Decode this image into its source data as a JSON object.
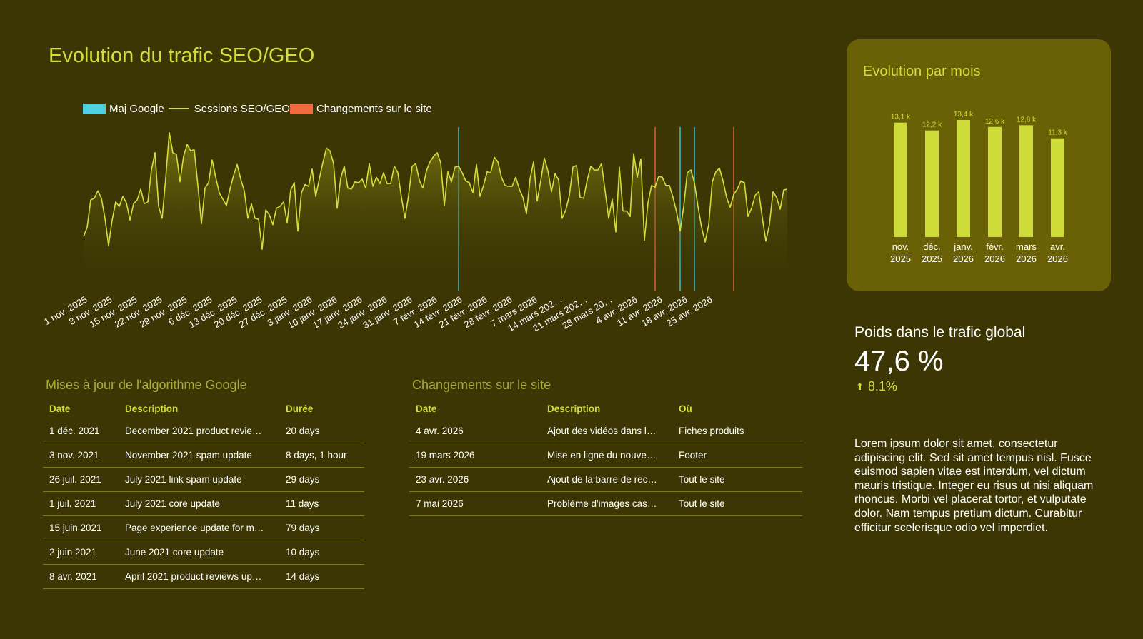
{
  "page": {
    "title": "Evolution du trafic SEO/GEO",
    "legend": [
      {
        "label": "Maj Google",
        "color": "#4fd0e0",
        "kind": "box"
      },
      {
        "label": "Sessions SEO/GEO",
        "color": "#d3de3a",
        "kind": "line"
      },
      {
        "label": "Changements sur le site",
        "color": "#f26a3d",
        "kind": "box"
      }
    ]
  },
  "chart_data": [
    {
      "type": "line",
      "title": "",
      "xlabel": "",
      "ylabel": "",
      "x_start": "1 nov. 2025",
      "x_ticks": [
        "1 nov. 2025",
        "8 nov. 2025",
        "15 nov. 2025",
        "22 nov. 2025",
        "29 nov. 2025",
        "6 déc. 2025",
        "13 déc. 2025",
        "20 déc. 2025",
        "27 déc. 2025",
        "3 janv. 2026",
        "10 janv. 2026",
        "17 janv. 2026",
        "24 janv. 2026",
        "31 janv. 2026",
        "7 févr. 2026",
        "14 févr. 2026",
        "21 févr. 2026",
        "28 févr. 2026",
        "7 mars 2026",
        "14 mars 202…",
        "21 mars 202…",
        "28 mars 20…",
        "4 avr. 2026",
        "11 avr. 2026",
        "18 avr. 2026",
        "25 avr. 2026"
      ],
      "series": [
        {
          "name": "Sessions SEO/GEO",
          "color": "#d3de3a",
          "values": [
            360,
            370,
            400,
            402,
            410,
            402,
            380,
            350,
            378,
            398,
            393,
            404,
            397,
            378,
            396,
            400,
            412,
            396,
            398,
            433,
            452,
            393,
            380,
            424,
            474,
            452,
            450,
            420,
            448,
            461,
            454,
            455,
            416,
            374,
            413,
            419,
            444,
            425,
            408,
            401,
            394,
            412,
            427,
            439,
            423,
            410,
            380,
            396,
            380,
            379,
            346,
            389,
            384,
            373,
            391,
            393,
            398,
            375,
            411,
            419,
            366,
            408,
            417,
            415,
            434,
            404,
            423,
            441,
            457,
            454,
            440,
            391,
            424,
            437,
            413,
            412,
            420,
            419,
            423,
            413,
            440,
            415,
            425,
            418,
            430,
            418,
            418,
            437,
            430,
            403,
            380,
            405,
            437,
            440,
            422,
            413,
            432,
            442,
            448,
            452,
            441,
            394,
            431,
            420,
            436,
            437,
            430,
            421,
            419,
            408,
            439,
            404,
            416,
            431,
            430,
            447,
            442,
            425,
            416,
            415,
            415,
            425,
            412,
            403,
            385,
            423,
            442,
            399,
            421,
            446,
            432,
            409,
            429,
            422,
            380,
            389,
            405,
            436,
            438,
            403,
            402,
            422,
            437,
            433,
            433,
            440,
            410,
            380,
            401,
            365,
            436,
            388,
            388,
            382,
            451,
            425,
            445,
            356,
            397,
            416,
            414,
            426,
            425,
            416,
            416,
            403,
            387,
            366,
            393,
            430,
            433,
            419,
            393,
            370,
            354,
            373,
            420,
            431,
            435,
            421,
            403,
            392,
            406,
            412,
            421,
            419,
            382,
            391,
            405,
            409,
            381,
            355,
            373,
            409,
            403,
            390,
            411,
            412
          ]
        }
      ],
      "vlines_maj_google": [
        {
          "day": 105
        },
        {
          "day": 167
        },
        {
          "day": 171
        }
      ],
      "vlines_changements": [
        {
          "day": 160
        },
        {
          "day": 182
        },
        {
          "day": 206
        }
      ],
      "colors": {
        "maj_google": "#4fd0e0",
        "changements": "#f26a3d"
      },
      "grid": false,
      "legend_position": "top-left"
    },
    {
      "type": "bar",
      "title": "Evolution par mois",
      "categories": [
        [
          "nov.",
          "2025"
        ],
        [
          "déc.",
          "2025"
        ],
        [
          "janv.",
          "2026"
        ],
        [
          "févr.",
          "2026"
        ],
        [
          "mars",
          "2026"
        ],
        [
          "avr.",
          "2026"
        ]
      ],
      "values": [
        13100,
        12200,
        13400,
        12600,
        12800,
        11300
      ],
      "data_labels": [
        "13,1 k",
        "12,2 k",
        "13,4 k",
        "12,6 k",
        "12,8 k",
        "11,3 k"
      ],
      "bar_color": "#cddc39",
      "xlabel": "",
      "ylabel": "",
      "ylim": [
        0,
        13400
      ]
    }
  ],
  "algo": {
    "title": "Mises à jour de l'algorithme Google",
    "headers": [
      "Date",
      "Description",
      "Durée"
    ],
    "rows": [
      [
        "1 déc. 2021",
        "December 2021 product revie…",
        "20 days"
      ],
      [
        "3 nov. 2021",
        "November 2021 spam update",
        "8 days, 1 hour"
      ],
      [
        "26 juil. 2021",
        "July 2021 link spam update",
        "29 days"
      ],
      [
        "1 juil. 2021",
        "July 2021 core update",
        "11 days"
      ],
      [
        "15 juin 2021",
        "Page experience update for m…",
        "79 days"
      ],
      [
        "2 juin 2021",
        "June 2021 core update",
        "10 days"
      ],
      [
        "8 avr. 2021",
        "April 2021 product reviews up…",
        "14 days"
      ]
    ]
  },
  "site": {
    "title": "Changements sur le site",
    "headers": [
      "Date",
      "Description",
      "Où"
    ],
    "rows": [
      [
        "4 avr. 2026",
        "Ajout des vidéos dans l…",
        "Fiches produits"
      ],
      [
        "19 mars 2026",
        "Mise en ligne du nouve…",
        "Footer"
      ],
      [
        "23 avr. 2026",
        "Ajout de la barre de rec…",
        "Tout le site"
      ],
      [
        "7 mai 2026",
        "Problème d'images cas…",
        "Tout le site"
      ]
    ]
  },
  "monthly": {
    "title": "Evolution par mois"
  },
  "weight": {
    "title": "Poids dans le trafic global",
    "value": "47,6 %",
    "delta": "8.1%",
    "delta_icon": "arrow-up-icon"
  },
  "lorem": "Lorem ipsum dolor sit amet, consectetur adipiscing elit. Sed sit amet tempus nisl. Fusce euismod sapien vitae est interdum, vel dictum mauris tristique. Integer eu risus ut nisi aliquam rhoncus. Morbi vel placerat tortor, et vulputate dolor. Nam tempus pretium dictum. Curabitur efficitur scelerisque odio vel imperdiet."
}
